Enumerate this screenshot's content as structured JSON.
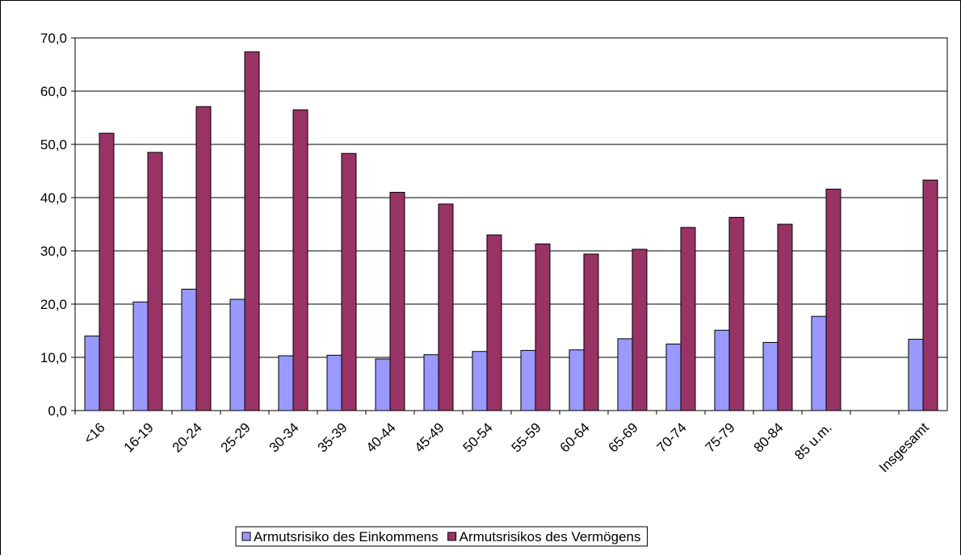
{
  "chart_data": {
    "type": "bar",
    "categories": [
      "<16",
      "16-19",
      "20-24",
      "25-29",
      "30-34",
      "35-39",
      "40-44",
      "45-49",
      "50-54",
      "55-59",
      "60-64",
      "65-69",
      "70-74",
      "75-79",
      "80-84",
      "85 u.m.",
      null,
      "Insgesamt"
    ],
    "series": [
      {
        "name": "Armutsrisiko des Einkommens",
        "color": "#9999ff",
        "values": [
          14.0,
          20.4,
          22.8,
          20.9,
          10.3,
          10.4,
          9.7,
          10.5,
          11.1,
          11.3,
          11.4,
          13.5,
          12.5,
          15.1,
          12.8,
          17.7,
          null,
          13.4
        ]
      },
      {
        "name": "Armutsrisikos des Vermögens",
        "color": "#993366",
        "values": [
          52.1,
          48.5,
          57.1,
          67.4,
          56.5,
          48.3,
          41.0,
          38.8,
          33.0,
          31.3,
          29.4,
          30.3,
          34.4,
          36.3,
          35.0,
          41.6,
          null,
          43.3
        ]
      }
    ],
    "ylim": [
      0,
      70
    ],
    "yticks": [
      {
        "value": 0,
        "label": "0,0"
      },
      {
        "value": 10,
        "label": "10,0"
      },
      {
        "value": 20,
        "label": "20,0"
      },
      {
        "value": 30,
        "label": "30,0"
      },
      {
        "value": 40,
        "label": "40,0"
      },
      {
        "value": 50,
        "label": "50,0"
      },
      {
        "value": 60,
        "label": "60,0"
      },
      {
        "value": 70,
        "label": "70,0"
      }
    ],
    "grid": true,
    "legend": "bottom"
  }
}
